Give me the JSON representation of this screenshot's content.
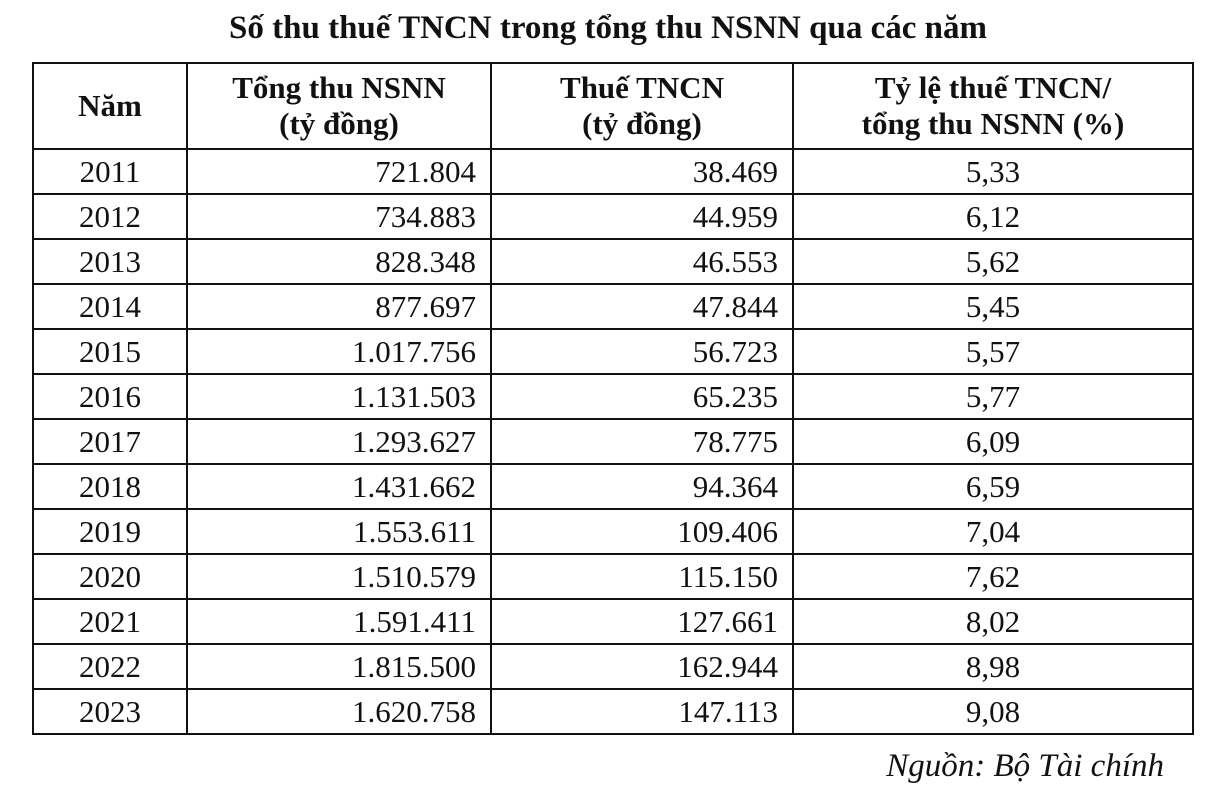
{
  "title": "Số thu thuế TNCN trong tổng thu NSNN qua các năm",
  "table": {
    "headers": [
      "Năm",
      "Tổng thu NSNN (tỷ đồng)",
      "Thuế TNCN (tỷ đồng)",
      "Tỷ lệ thuế TNCN/ tổng thu NSNN (%)"
    ],
    "rows": [
      [
        "2011",
        "721.804",
        "38.469",
        "5,33"
      ],
      [
        "2012",
        "734.883",
        "44.959",
        "6,12"
      ],
      [
        "2013",
        "828.348",
        "46.553",
        "5,62"
      ],
      [
        "2014",
        "877.697",
        "47.844",
        "5,45"
      ],
      [
        "2015",
        "1.017.756",
        "56.723",
        "5,57"
      ],
      [
        "2016",
        "1.131.503",
        "65.235",
        "5,77"
      ],
      [
        "2017",
        "1.293.627",
        "78.775",
        "6,09"
      ],
      [
        "2018",
        "1.431.662",
        "94.364",
        "6,59"
      ],
      [
        "2019",
        "1.553.611",
        "109.406",
        "7,04"
      ],
      [
        "2020",
        "1.510.579",
        "115.150",
        "7,62"
      ],
      [
        "2021",
        "1.591.411",
        "127.661",
        "8,02"
      ],
      [
        "2022",
        "1.815.500",
        "162.944",
        "8,98"
      ],
      [
        "2023",
        "1.620.758",
        "147.113",
        "9,08"
      ]
    ]
  },
  "source": "Nguồn: Bộ Tài chính"
}
